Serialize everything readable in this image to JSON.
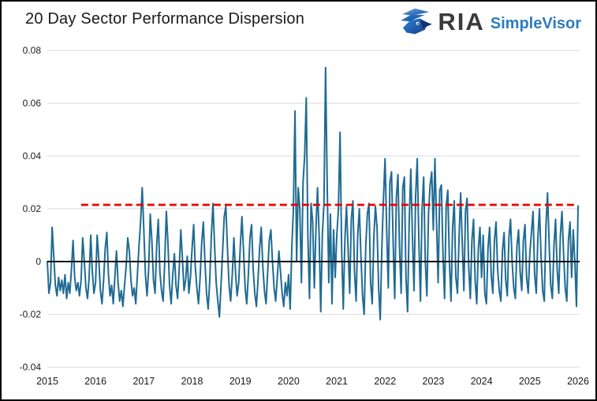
{
  "header": {
    "title": "20 Day Sector Performance Dispersion",
    "logo": {
      "icon": "ria-eagle-icon",
      "brand": "RIA",
      "product": "SimpleVisor"
    }
  },
  "colors": {
    "series_line": "#1f6b93",
    "threshold_line": "#ee0000",
    "zero_line": "#000000",
    "gridline": "#d9d9d9",
    "tick_label": "#1a1a1a",
    "title_text": "#1a1a1a",
    "brand_dark": "#3a3a3a",
    "brand_blue": "#2e7cbe"
  },
  "chart_data": {
    "type": "line",
    "title": "20 Day Sector Performance Dispersion",
    "xlabel": "",
    "ylabel": "",
    "grid": "horizontal",
    "legend": "none",
    "x_start": 2015,
    "x_end": 2026,
    "x_tick_labels": [
      "2015",
      "2016",
      "2017",
      "2018",
      "2019",
      "2020",
      "2021",
      "2022",
      "2023",
      "2024",
      "2025",
      "2026"
    ],
    "x_tick_values": [
      2015,
      2016,
      2017,
      2018,
      2019,
      2020,
      2021,
      2022,
      2023,
      2024,
      2025,
      2026
    ],
    "y_tick_labels": [
      "0.08",
      "0.06",
      "0.04",
      "0.02",
      "0",
      "-0.02",
      "-0.04"
    ],
    "y_tick_values": [
      0.08,
      0.06,
      0.04,
      0.02,
      0,
      -0.02,
      -0.04
    ],
    "ylim": [
      -0.045,
      0.082
    ],
    "zero_line_value": 0,
    "threshold_line": {
      "value": 0.0215,
      "style": "dashed",
      "color": "#ee0000",
      "x_start": 2015.7,
      "x_end": 2026
    },
    "series": [
      {
        "name": "20 Day Sector Performance Dispersion",
        "values": [
          0.0,
          -0.012,
          -0.008,
          0.013,
          0.002,
          -0.009,
          -0.013,
          -0.006,
          -0.011,
          -0.007,
          -0.012,
          -0.005,
          -0.014,
          -0.008,
          -0.012,
          -0.003,
          0.008,
          -0.006,
          -0.011,
          -0.008,
          -0.013,
          -0.007,
          0.009,
          0.0,
          -0.01,
          -0.014,
          -0.006,
          0.01,
          -0.004,
          -0.012,
          -0.008,
          0.01,
          0.001,
          -0.011,
          -0.016,
          -0.007,
          0.005,
          0.011,
          -0.005,
          -0.013,
          -0.009,
          -0.016,
          -0.006,
          0.004,
          -0.008,
          -0.015,
          -0.011,
          -0.017,
          -0.009,
          -0.002,
          0.009,
          0.004,
          -0.007,
          -0.013,
          -0.01,
          -0.016,
          -0.005,
          0.006,
          0.015,
          0.028,
          0.012,
          -0.005,
          -0.013,
          -0.003,
          0.018,
          0.008,
          -0.007,
          -0.012,
          0.006,
          0.016,
          -0.004,
          -0.011,
          -0.015,
          0.0,
          0.019,
          0.007,
          -0.009,
          -0.016,
          -0.005,
          0.003,
          -0.009,
          -0.014,
          -0.003,
          0.012,
          0.001,
          -0.011,
          -0.007,
          0.002,
          -0.012,
          -0.006,
          0.005,
          0.014,
          -0.002,
          -0.01,
          -0.016,
          -0.006,
          0.007,
          0.015,
          0.0,
          -0.012,
          -0.018,
          -0.007,
          0.01,
          0.022,
          0.006,
          -0.008,
          -0.015,
          -0.021,
          -0.009,
          0.004,
          0.017,
          0.021,
          0.005,
          -0.009,
          -0.015,
          -0.005,
          0.009,
          -0.004,
          -0.013,
          -0.008,
          0.006,
          0.017,
          0.004,
          -0.01,
          -0.016,
          -0.005,
          0.009,
          0.014,
          -0.003,
          -0.012,
          -0.017,
          -0.007,
          0.005,
          0.013,
          -0.002,
          -0.011,
          -0.016,
          -0.004,
          0.008,
          0.012,
          0.0,
          -0.01,
          -0.015,
          -0.006,
          0.004,
          -0.004,
          -0.012,
          -0.017,
          -0.008,
          -0.013,
          -0.005,
          -0.018,
          0.005,
          0.02,
          0.057,
          0.0,
          0.028,
          0.02,
          -0.008,
          0.03,
          0.04,
          0.062,
          0.01,
          -0.014,
          0.022,
          0.015,
          -0.01,
          0.012,
          0.028,
          0.01,
          -0.019,
          0.01,
          0.022,
          0.0735,
          0.03,
          -0.008,
          0.018,
          -0.016,
          0.012,
          -0.006,
          0.01,
          0.02,
          0.049,
          0.005,
          -0.018,
          0.008,
          0.021,
          0.005,
          -0.012,
          0.016,
          0.023,
          -0.004,
          -0.015,
          0.01,
          0.02,
          0.002,
          -0.013,
          -0.02,
          0.006,
          0.018,
          0.022,
          -0.008,
          -0.016,
          0.009,
          0.021,
          0.013,
          -0.01,
          -0.022,
          0.005,
          0.024,
          0.039,
          0.012,
          -0.01,
          0.03,
          0.034,
          0.008,
          -0.014,
          0.024,
          0.033,
          0.005,
          -0.012,
          0.028,
          0.032,
          -0.006,
          -0.019,
          0.015,
          0.035,
          0.01,
          -0.011,
          0.025,
          0.039,
          0.008,
          -0.015,
          0.02,
          0.032,
          0.0,
          -0.013,
          0.018,
          0.029,
          0.034,
          0.012,
          0.039,
          0.015,
          -0.008,
          0.027,
          0.029,
          0.003,
          -0.014,
          0.021,
          0.027,
          0.0,
          -0.015,
          0.013,
          0.023,
          -0.006,
          -0.012,
          0.009,
          0.026,
          0.007,
          -0.011,
          0.019,
          0.024,
          -0.002,
          -0.014,
          0.008,
          0.016,
          -0.007,
          -0.016,
          0.005,
          0.013,
          -0.006,
          0.01,
          -0.012,
          -0.016,
          0.005,
          0.013,
          -0.005,
          -0.012,
          0.008,
          0.015,
          -0.003,
          -0.011,
          -0.015,
          0.004,
          0.011,
          -0.007,
          -0.013,
          0.009,
          0.016,
          0.0,
          -0.01,
          -0.014,
          0.006,
          0.012,
          -0.004,
          -0.011,
          0.008,
          0.014,
          -0.006,
          -0.012,
          0.003,
          0.011,
          0.019,
          -0.005,
          -0.012,
          0.009,
          0.02,
          0.002,
          -0.011,
          -0.015,
          0.013,
          0.026,
          0.007,
          -0.009,
          -0.014,
          0.006,
          0.016,
          -0.003,
          -0.012,
          0.01,
          0.019,
          0.003,
          -0.01,
          -0.015,
          0.008,
          0.015,
          -0.006,
          0.012,
          0.0,
          -0.017,
          0.021
        ]
      }
    ]
  }
}
